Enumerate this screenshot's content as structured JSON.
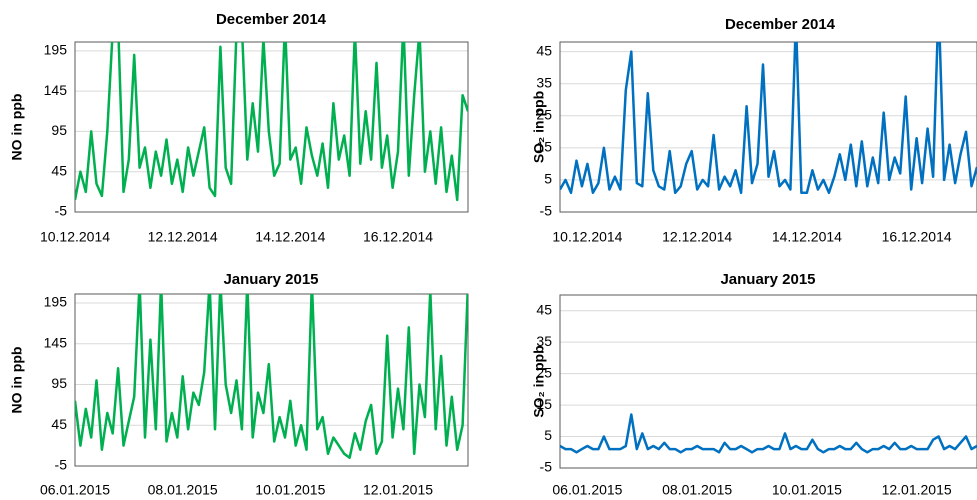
{
  "chart_data": [
    {
      "type": "line",
      "title": "December 2014",
      "y_label": "NO in ppb",
      "color": "#00b050",
      "grid": true,
      "ylim": [
        -5,
        206
      ],
      "yticks": [
        -5,
        45,
        95,
        145,
        195
      ],
      "categories": [
        "10.12.2014",
        null,
        null,
        null,
        null,
        null,
        null,
        null,
        null,
        null,
        null,
        null,
        null,
        null,
        null,
        null,
        null,
        null,
        null,
        null,
        "12.12.2014",
        null,
        null,
        null,
        null,
        null,
        null,
        null,
        null,
        null,
        null,
        null,
        null,
        null,
        null,
        null,
        null,
        null,
        null,
        null,
        "14.12.2014",
        null,
        null,
        null,
        null,
        null,
        null,
        null,
        null,
        null,
        null,
        null,
        null,
        null,
        null,
        null,
        null,
        null,
        null,
        null,
        "16.12.2014",
        null,
        null,
        null,
        null,
        null,
        null,
        null,
        null,
        null,
        null,
        null,
        null,
        null
      ],
      "values": [
        10,
        45,
        20,
        95,
        30,
        15,
        95,
        220,
        230,
        20,
        60,
        190,
        50,
        75,
        25,
        70,
        40,
        85,
        30,
        60,
        20,
        75,
        40,
        70,
        100,
        25,
        15,
        200,
        50,
        30,
        220,
        225,
        60,
        130,
        70,
        210,
        95,
        40,
        55,
        230,
        60,
        75,
        30,
        100,
        65,
        40,
        80,
        25,
        130,
        60,
        90,
        40,
        220,
        55,
        120,
        60,
        180,
        50,
        90,
        25,
        70,
        230,
        40,
        140,
        220,
        45,
        95,
        30,
        100,
        20,
        65,
        10,
        140,
        120
      ]
    },
    {
      "type": "line",
      "title": "December 2014",
      "y_label": "SO₂ in ppb",
      "color": "#0070c0",
      "grid": true,
      "ylim": [
        -5,
        48
      ],
      "yticks": [
        -5,
        5,
        15,
        25,
        35,
        45
      ],
      "categories": [
        null,
        null,
        null,
        null,
        null,
        "10.12.2014",
        null,
        null,
        null,
        null,
        null,
        null,
        null,
        null,
        null,
        null,
        null,
        null,
        null,
        null,
        null,
        null,
        null,
        null,
        null,
        "12.12.2014",
        null,
        null,
        null,
        null,
        null,
        null,
        null,
        null,
        null,
        null,
        null,
        null,
        null,
        null,
        null,
        null,
        null,
        null,
        null,
        "14.12.2014",
        null,
        null,
        null,
        null,
        null,
        null,
        null,
        null,
        null,
        null,
        null,
        null,
        null,
        null,
        null,
        null,
        null,
        null,
        null,
        "16.12.2014",
        null,
        null,
        null,
        null,
        null,
        null,
        null,
        null,
        null,
        null,
        null
      ],
      "values": [
        2,
        5,
        1,
        11,
        3,
        10,
        1,
        4,
        15,
        2,
        6,
        2,
        33,
        45,
        4,
        3,
        32,
        8,
        3,
        2,
        14,
        1,
        3,
        10,
        14,
        2,
        5,
        3,
        19,
        2,
        6,
        3,
        8,
        1,
        28,
        4,
        10,
        41,
        6,
        14,
        3,
        5,
        2,
        55,
        1,
        1,
        8,
        2,
        5,
        1,
        6,
        13,
        5,
        16,
        3,
        17,
        3,
        12,
        4,
        26,
        5,
        12,
        7,
        31,
        2,
        18,
        4,
        21,
        6,
        60,
        5,
        16,
        4,
        13,
        20,
        3,
        9
      ]
    },
    {
      "type": "line",
      "title": "January 2015",
      "y_label": "NO in ppb",
      "color": "#00b050",
      "grid": true,
      "ylim": [
        -5,
        206
      ],
      "yticks": [
        -5,
        45,
        95,
        145,
        195
      ],
      "categories": [
        "06.01.2015",
        null,
        null,
        null,
        null,
        null,
        null,
        null,
        null,
        null,
        null,
        null,
        null,
        null,
        null,
        null,
        null,
        null,
        null,
        null,
        "08.01.2015",
        null,
        null,
        null,
        null,
        null,
        null,
        null,
        null,
        null,
        null,
        null,
        null,
        null,
        null,
        null,
        null,
        null,
        null,
        null,
        "10.01.2015",
        null,
        null,
        null,
        null,
        null,
        null,
        null,
        null,
        null,
        null,
        null,
        null,
        null,
        null,
        null,
        null,
        null,
        null,
        null,
        "12.01.2015",
        null,
        null,
        null,
        null,
        null,
        null,
        null,
        null,
        null,
        null,
        null,
        null,
        null
      ],
      "values": [
        75,
        20,
        65,
        30,
        100,
        15,
        60,
        35,
        115,
        20,
        50,
        80,
        220,
        30,
        150,
        40,
        220,
        25,
        60,
        30,
        105,
        40,
        85,
        70,
        110,
        220,
        40,
        220,
        95,
        60,
        100,
        40,
        220,
        30,
        85,
        60,
        120,
        25,
        55,
        30,
        75,
        20,
        45,
        15,
        220,
        40,
        55,
        10,
        30,
        20,
        10,
        5,
        35,
        15,
        50,
        70,
        10,
        25,
        155,
        30,
        90,
        40,
        165,
        10,
        95,
        55,
        210,
        40,
        130,
        20,
        80,
        15,
        45,
        220
      ]
    },
    {
      "type": "line",
      "title": "January 2015",
      "y_label": "SO₂ in ppb",
      "color": "#0070c0",
      "grid": true,
      "ylim": [
        -5,
        50
      ],
      "yticks": [
        -5,
        5,
        15,
        25,
        35,
        45
      ],
      "categories": [
        null,
        null,
        null,
        null,
        null,
        "06.01.2015",
        null,
        null,
        null,
        null,
        null,
        null,
        null,
        null,
        null,
        null,
        null,
        null,
        null,
        null,
        null,
        null,
        null,
        null,
        null,
        "08.01.2015",
        null,
        null,
        null,
        null,
        null,
        null,
        null,
        null,
        null,
        null,
        null,
        null,
        null,
        null,
        null,
        null,
        null,
        null,
        null,
        "10.01.2015",
        null,
        null,
        null,
        null,
        null,
        null,
        null,
        null,
        null,
        null,
        null,
        null,
        null,
        null,
        null,
        null,
        null,
        null,
        null,
        "12.01.2015",
        null,
        null,
        null,
        null,
        null,
        null,
        null,
        null,
        null,
        null,
        null
      ],
      "values": [
        2,
        1,
        1,
        0,
        1,
        2,
        1,
        1,
        5,
        1,
        1,
        1,
        2,
        12,
        1,
        6,
        1,
        2,
        1,
        3,
        1,
        1,
        0,
        1,
        1,
        2,
        1,
        1,
        1,
        0,
        3,
        1,
        1,
        2,
        1,
        0,
        1,
        1,
        2,
        1,
        1,
        6,
        1,
        2,
        1,
        1,
        4,
        1,
        0,
        1,
        1,
        2,
        1,
        1,
        3,
        1,
        0,
        1,
        1,
        2,
        1,
        3,
        1,
        1,
        2,
        1,
        1,
        1,
        4,
        5,
        1,
        2,
        1,
        3,
        5,
        1,
        2
      ]
    }
  ]
}
